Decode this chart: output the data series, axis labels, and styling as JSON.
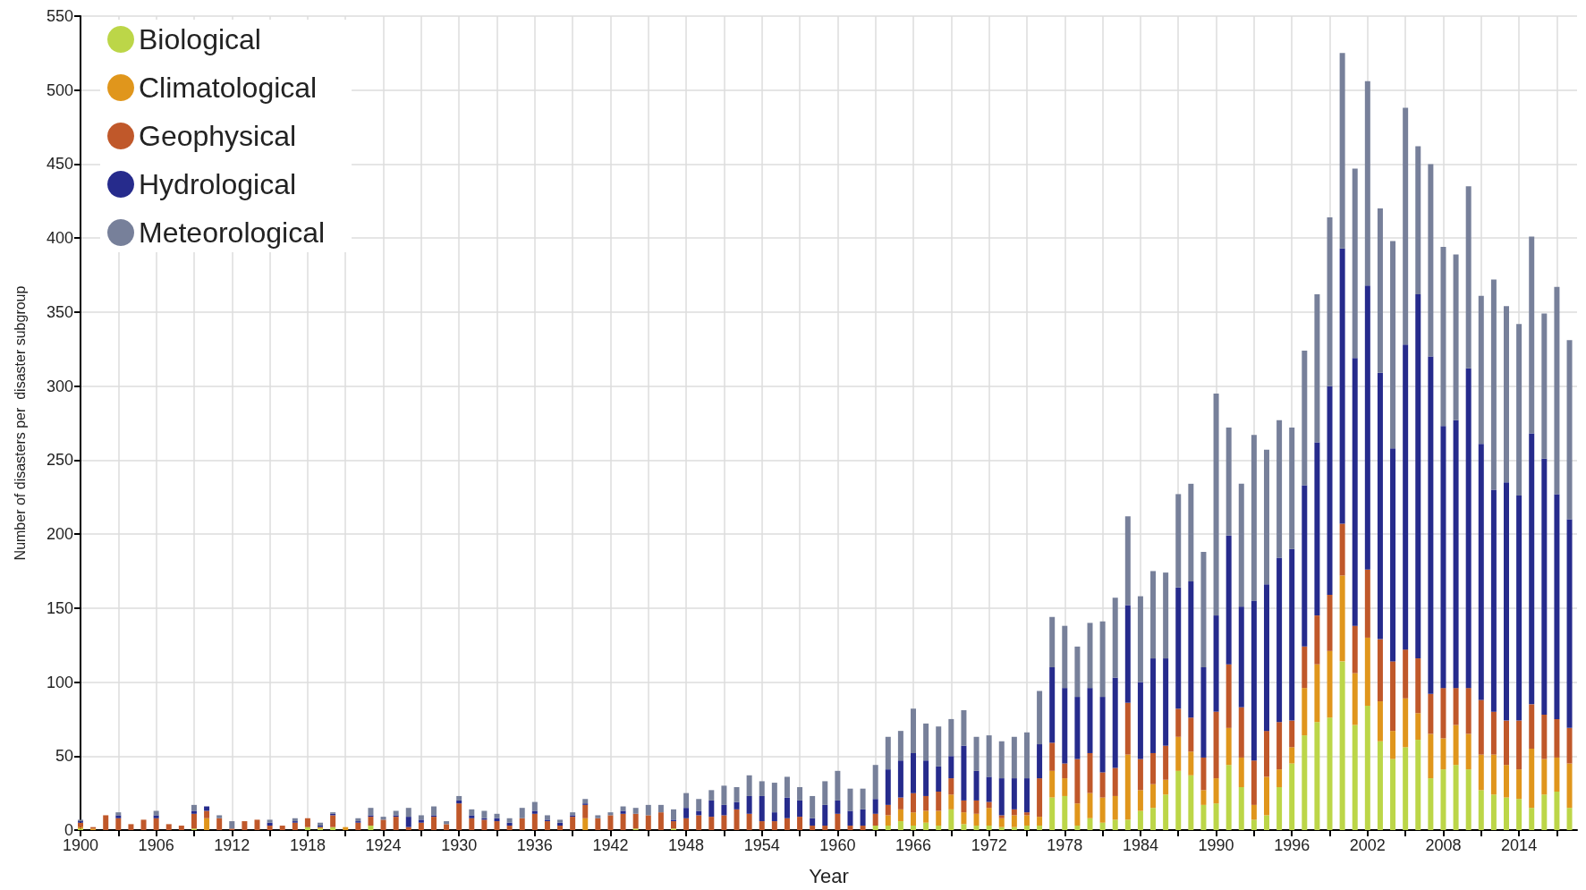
{
  "chart_data": {
    "type": "bar",
    "stacked": true,
    "xlabel": "Year",
    "ylabel": "Number of disasters per  disaster subgroup",
    "x": [
      1900,
      1901,
      1902,
      1903,
      1904,
      1905,
      1906,
      1907,
      1908,
      1909,
      1910,
      1911,
      1912,
      1913,
      1914,
      1915,
      1916,
      1917,
      1918,
      1919,
      1920,
      1921,
      1922,
      1923,
      1924,
      1925,
      1926,
      1927,
      1928,
      1929,
      1930,
      1931,
      1932,
      1933,
      1934,
      1935,
      1936,
      1937,
      1938,
      1939,
      1940,
      1941,
      1942,
      1943,
      1944,
      1945,
      1946,
      1947,
      1948,
      1949,
      1950,
      1951,
      1952,
      1953,
      1954,
      1955,
      1956,
      1957,
      1958,
      1959,
      1960,
      1961,
      1962,
      1963,
      1964,
      1965,
      1966,
      1967,
      1968,
      1969,
      1970,
      1971,
      1972,
      1973,
      1974,
      1975,
      1976,
      1977,
      1978,
      1979,
      1980,
      1981,
      1982,
      1983,
      1984,
      1985,
      1986,
      1987,
      1988,
      1989,
      1990,
      1991,
      1992,
      1993,
      1994,
      1995,
      1996,
      1997,
      1998,
      1999,
      2000,
      2001,
      2002,
      2003,
      2004,
      2005,
      2006,
      2007,
      2008,
      2009,
      2010,
      2011,
      2012,
      2013,
      2014,
      2015,
      2016,
      2017,
      2018
    ],
    "series": [
      {
        "name": "Biological",
        "color": "#bcd648",
        "values": [
          1,
          0,
          0,
          0,
          0,
          0,
          0,
          0,
          0,
          1,
          0,
          0,
          0,
          0,
          0,
          0,
          0,
          0,
          2,
          1,
          2,
          0,
          0,
          3,
          0,
          0,
          0,
          0,
          0,
          0,
          0,
          0,
          0,
          0,
          0,
          0,
          0,
          0,
          0,
          0,
          0,
          0,
          0,
          0,
          1,
          0,
          0,
          1,
          0,
          0,
          0,
          0,
          0,
          0,
          0,
          0,
          0,
          0,
          0,
          0,
          0,
          0,
          0,
          3,
          3,
          6,
          3,
          5,
          3,
          14,
          4,
          3,
          3,
          2,
          2,
          3,
          3,
          22,
          23,
          3,
          8,
          5,
          7,
          7,
          13,
          15,
          24,
          40,
          37,
          17,
          18,
          44,
          29,
          7,
          10,
          29,
          45,
          64,
          73,
          76,
          114,
          71,
          84,
          60,
          48,
          56,
          61,
          35,
          41,
          44,
          41,
          27,
          24,
          22,
          21,
          15,
          24,
          26,
          15
        ]
      },
      {
        "name": "Climatological",
        "color": "#e0961c",
        "values": [
          1,
          1,
          0,
          0,
          0,
          0,
          0,
          0,
          0,
          0,
          8,
          0,
          0,
          0,
          0,
          0,
          0,
          0,
          0,
          1,
          0,
          2,
          0,
          0,
          0,
          0,
          0,
          0,
          0,
          0,
          0,
          0,
          0,
          0,
          0,
          0,
          0,
          0,
          0,
          0,
          8,
          0,
          0,
          0,
          0,
          0,
          0,
          0,
          0,
          0,
          0,
          0,
          0,
          0,
          0,
          0,
          0,
          0,
          0,
          0,
          0,
          0,
          0,
          0,
          7,
          8,
          9,
          8,
          10,
          10,
          8,
          8,
          12,
          6,
          8,
          7,
          6,
          18,
          12,
          15,
          17,
          17,
          16,
          44,
          14,
          16,
          10,
          23,
          16,
          10,
          17,
          25,
          20,
          10,
          26,
          12,
          11,
          32,
          39,
          45,
          58,
          35,
          46,
          27,
          19,
          33,
          18,
          30,
          21,
          27,
          24,
          24,
          27,
          22,
          20,
          40,
          24,
          23,
          30
        ]
      },
      {
        "name": "Geophysical",
        "color": "#c0582a",
        "values": [
          3,
          1,
          10,
          8,
          4,
          7,
          8,
          4,
          3,
          10,
          5,
          8,
          1,
          6,
          7,
          3,
          3,
          5,
          6,
          0,
          8,
          0,
          5,
          6,
          7,
          9,
          2,
          5,
          9,
          4,
          18,
          8,
          7,
          6,
          3,
          8,
          11,
          6,
          3,
          9,
          9,
          8,
          10,
          11,
          10,
          10,
          12,
          5,
          8,
          10,
          9,
          10,
          14,
          11,
          6,
          6,
          8,
          9,
          3,
          3,
          11,
          3,
          3,
          8,
          7,
          8,
          13,
          10,
          13,
          11,
          8,
          9,
          4,
          2,
          4,
          2,
          26,
          19,
          10,
          30,
          27,
          17,
          19,
          35,
          21,
          21,
          23,
          19,
          23,
          22,
          45,
          43,
          34,
          30,
          31,
          32,
          18,
          28,
          33,
          38,
          35,
          32,
          46,
          42,
          47,
          33,
          37,
          27,
          34,
          25,
          31,
          37,
          29,
          30,
          33,
          30,
          30,
          26,
          24
        ]
      },
      {
        "name": "Hydrological",
        "color": "#262b8c",
        "values": [
          1,
          0,
          0,
          2,
          0,
          0,
          2,
          0,
          0,
          2,
          3,
          0,
          0,
          0,
          0,
          2,
          0,
          1,
          0,
          1,
          1,
          0,
          1,
          1,
          0,
          1,
          7,
          2,
          1,
          0,
          2,
          2,
          1,
          2,
          2,
          0,
          2,
          1,
          2,
          1,
          1,
          0,
          0,
          2,
          0,
          0,
          0,
          1,
          7,
          3,
          11,
          7,
          5,
          12,
          17,
          6,
          14,
          11,
          5,
          14,
          9,
          10,
          11,
          10,
          24,
          25,
          27,
          24,
          17,
          15,
          37,
          20,
          17,
          25,
          21,
          23,
          23,
          51,
          51,
          42,
          44,
          51,
          61,
          66,
          52,
          64,
          59,
          82,
          92,
          61,
          65,
          87,
          68,
          108,
          99,
          111,
          116,
          109,
          117,
          141,
          186,
          181,
          192,
          180,
          144,
          206,
          246,
          228,
          177,
          181,
          216,
          173,
          150,
          161,
          152,
          183,
          173,
          152,
          141
        ]
      },
      {
        "name": "Meteorological",
        "color": "#77809a",
        "values": [
          1,
          0,
          0,
          2,
          0,
          0,
          3,
          0,
          0,
          4,
          0,
          2,
          5,
          0,
          0,
          2,
          0,
          2,
          0,
          2,
          1,
          0,
          2,
          5,
          2,
          3,
          6,
          3,
          6,
          2,
          3,
          4,
          5,
          3,
          3,
          7,
          6,
          3,
          2,
          2,
          3,
          2,
          2,
          3,
          4,
          7,
          5,
          7,
          10,
          8,
          7,
          13,
          10,
          14,
          10,
          20,
          14,
          9,
          15,
          16,
          20,
          15,
          14,
          23,
          22,
          20,
          30,
          25,
          27,
          25,
          24,
          23,
          28,
          25,
          28,
          31,
          36,
          34,
          42,
          34,
          44,
          51,
          54,
          60,
          58,
          59,
          58,
          63,
          66,
          78,
          150,
          73,
          83,
          112,
          91,
          93,
          82,
          91,
          100,
          114,
          132,
          128,
          138,
          111,
          140,
          160,
          100,
          130,
          121,
          112,
          123,
          100,
          142,
          119,
          116,
          133,
          98,
          140,
          121
        ]
      }
    ],
    "xlim": [
      1900,
      2018.6
    ],
    "xticks": [
      1900,
      {
        "value": 1903,
        "label": null
      },
      1906,
      {
        "value": 1909,
        "label": null
      },
      1912,
      {
        "value": 1915,
        "label": null
      },
      1918,
      {
        "value": 1921,
        "label": null
      },
      1924,
      {
        "value": 1927,
        "label": null
      },
      1930,
      {
        "value": 1933,
        "label": null
      },
      1936,
      {
        "value": 1939,
        "label": null
      },
      1942,
      {
        "value": 1945,
        "label": null
      },
      1948,
      {
        "value": 1951,
        "label": null
      },
      1954,
      {
        "value": 1957,
        "label": null
      },
      1960,
      {
        "value": 1963,
        "label": null
      },
      1966,
      {
        "value": 1969,
        "label": null
      },
      1972,
      {
        "value": 1975,
        "label": null
      },
      1978,
      {
        "value": 1981,
        "label": null
      },
      1984,
      {
        "value": 1987,
        "label": null
      },
      1990,
      {
        "value": 1993,
        "label": null
      },
      1996,
      {
        "value": 1999,
        "label": null
      },
      2002,
      {
        "value": 2005,
        "label": null
      },
      2008,
      {
        "value": 2011,
        "label": null
      },
      2014,
      {
        "value": 2017,
        "label": null
      }
    ],
    "ylim": [
      0,
      550
    ],
    "yticks": [
      0,
      50,
      100,
      150,
      200,
      250,
      300,
      350,
      400,
      450,
      500,
      550
    ],
    "grid": true,
    "legend": "top left"
  }
}
